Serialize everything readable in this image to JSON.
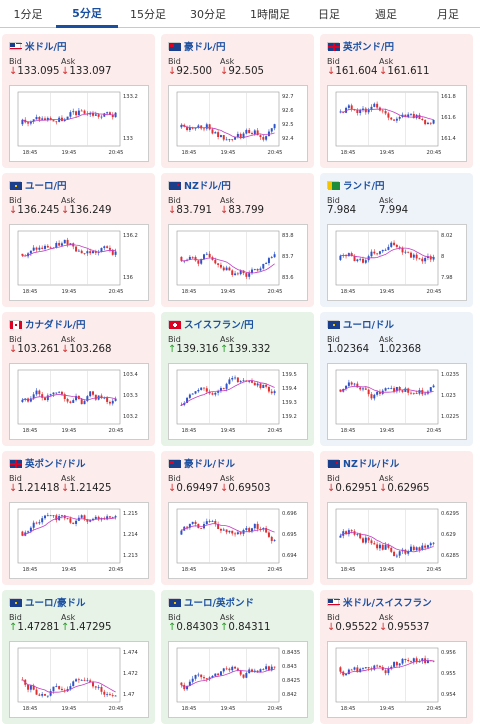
{
  "tabs": [
    {
      "label": "1分足",
      "active": false
    },
    {
      "label": "5分足",
      "active": true
    },
    {
      "label": "15分足",
      "active": false
    },
    {
      "label": "30分足",
      "active": false
    },
    {
      "label": "1時間足",
      "active": false
    },
    {
      "label": "日足",
      "active": false
    },
    {
      "label": "週足",
      "active": false
    },
    {
      "label": "月足",
      "active": false
    }
  ],
  "colors": {
    "up": "#259b25",
    "down": "#d43030",
    "link": "#1a4fa0",
    "up_candle": "#2c53c9",
    "down_candle": "#e03030",
    "ma": "#c23fc2"
  },
  "cards": [
    {
      "pair": "米ドル/円",
      "flag": "us",
      "trend": "down",
      "bid_label": "Bid",
      "ask_label": "Ask",
      "bid": "133.095",
      "ask": "133.097",
      "arrow": "down",
      "y_ticks": [
        "133.2",
        "133"
      ],
      "x_ticks": [
        "18:45",
        "19:45",
        "20:45"
      ]
    },
    {
      "pair": "豪ドル/円",
      "flag": "au",
      "trend": "down",
      "bid_label": "Bid",
      "ask_label": "Ask",
      "bid": "92.500",
      "ask": "92.505",
      "arrow": "down",
      "y_ticks": [
        "92.7",
        "92.6",
        "92.5",
        "92.4"
      ],
      "x_ticks": [
        "18:45",
        "19:45",
        "20:45"
      ]
    },
    {
      "pair": "英ポンド/円",
      "flag": "gb",
      "trend": "down",
      "bid_label": "Bid",
      "ask_label": "Ask",
      "bid": "161.604",
      "ask": "161.611",
      "arrow": "down",
      "y_ticks": [
        "161.8",
        "161.6",
        "161.4"
      ],
      "x_ticks": [
        "18:45",
        "19:45",
        "20:45"
      ]
    },
    {
      "pair": "ユーロ/円",
      "flag": "eu",
      "trend": "down",
      "bid_label": "Bid",
      "ask_label": "Ask",
      "bid": "136.245",
      "ask": "136.249",
      "arrow": "down",
      "y_ticks": [
        "136.2",
        "136"
      ],
      "x_ticks": [
        "18:45",
        "19:45",
        "20:45"
      ]
    },
    {
      "pair": "NZドル/円",
      "flag": "nz",
      "trend": "down",
      "bid_label": "Bid",
      "ask_label": "Ask",
      "bid": "83.791",
      "ask": "83.799",
      "arrow": "down",
      "y_ticks": [
        "83.8",
        "83.7",
        "83.6"
      ],
      "x_ticks": [
        "18:45",
        "19:45",
        "20:45"
      ]
    },
    {
      "pair": "ランド/円",
      "flag": "za",
      "trend": "flat",
      "bid_label": "Bid",
      "ask_label": "Ask",
      "bid": "7.984",
      "ask": "7.994",
      "arrow": "none",
      "y_ticks": [
        "8.02",
        "8",
        "7.98"
      ],
      "x_ticks": [
        "18:45",
        "19:45",
        "20:45"
      ]
    },
    {
      "pair": "カナダドル/円",
      "flag": "ca",
      "trend": "down",
      "bid_label": "Bid",
      "ask_label": "Ask",
      "bid": "103.261",
      "ask": "103.268",
      "arrow": "down",
      "y_ticks": [
        "103.4",
        "103.3",
        "103.2"
      ],
      "x_ticks": [
        "18:45",
        "19:45",
        "20:45"
      ]
    },
    {
      "pair": "スイスフラン/円",
      "flag": "ch",
      "trend": "up",
      "bid_label": "Bid",
      "ask_label": "Ask",
      "bid": "139.316",
      "ask": "139.332",
      "arrow": "up",
      "y_ticks": [
        "139.5",
        "139.4",
        "139.3",
        "139.2"
      ],
      "x_ticks": [
        "18:45",
        "19:45",
        "20:45"
      ]
    },
    {
      "pair": "ユーロ/ドル",
      "flag": "eu",
      "trend": "flat",
      "bid_label": "Bid",
      "ask_label": "Ask",
      "bid": "1.02364",
      "ask": "1.02368",
      "arrow": "none",
      "y_ticks": [
        "1.0235",
        "1.023",
        "1.0225"
      ],
      "x_ticks": [
        "18:45",
        "19:45",
        "20:45"
      ]
    },
    {
      "pair": "英ポンド/ドル",
      "flag": "gb",
      "trend": "down",
      "bid_label": "Bid",
      "ask_label": "Ask",
      "bid": "1.21418",
      "ask": "1.21425",
      "arrow": "down",
      "y_ticks": [
        "1.215",
        "1.214",
        "1.213"
      ],
      "x_ticks": [
        "18:45",
        "19:45",
        "20:45"
      ]
    },
    {
      "pair": "豪ドル/ドル",
      "flag": "au",
      "trend": "down",
      "bid_label": "Bid",
      "ask_label": "Ask",
      "bid": "0.69497",
      "ask": "0.69503",
      "arrow": "down",
      "y_ticks": [
        "0.696",
        "0.695",
        "0.694"
      ],
      "x_ticks": [
        "18:45",
        "19:45",
        "20:45"
      ]
    },
    {
      "pair": "NZドル/ドル",
      "flag": "nz",
      "trend": "down",
      "bid_label": "Bid",
      "ask_label": "Ask",
      "bid": "0.62951",
      "ask": "0.62965",
      "arrow": "down",
      "y_ticks": [
        "0.6295",
        "0.629",
        "0.6285"
      ],
      "x_ticks": [
        "18:45",
        "19:45",
        "20:45"
      ]
    },
    {
      "pair": "ユーロ/豪ドル",
      "flag": "eu",
      "trend": "up",
      "bid_label": "Bid",
      "ask_label": "Ask",
      "bid": "1.47281",
      "ask": "1.47295",
      "arrow": "up",
      "y_ticks": [
        "1.474",
        "1.472",
        "1.47"
      ],
      "x_ticks": [
        "18:45",
        "19:45",
        "20:45"
      ]
    },
    {
      "pair": "ユーロ/英ポンド",
      "flag": "eu",
      "trend": "up",
      "bid_label": "Bid",
      "ask_label": "Ask",
      "bid": "0.84303",
      "ask": "0.84311",
      "arrow": "up",
      "y_ticks": [
        "0.8435",
        "0.843",
        "0.8425",
        "0.842"
      ],
      "x_ticks": [
        "18:45",
        "19:45",
        "20:45"
      ]
    },
    {
      "pair": "米ドル/スイスフラン",
      "flag": "us",
      "trend": "down",
      "bid_label": "Bid",
      "ask_label": "Ask",
      "bid": "0.95522",
      "ask": "0.95537",
      "arrow": "down",
      "y_ticks": [
        "0.956",
        "0.955",
        "0.954"
      ],
      "x_ticks": [
        "18:45",
        "19:45",
        "20:45"
      ]
    }
  ]
}
